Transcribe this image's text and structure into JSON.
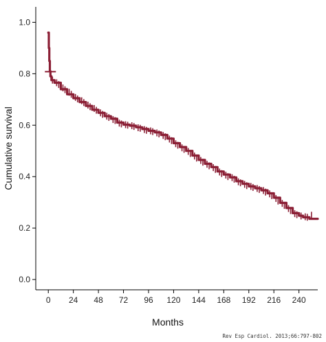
{
  "chart_data": {
    "type": "line",
    "xlabel": "Months",
    "ylabel": "Cumulative survival",
    "xlim": [
      -12,
      258
    ],
    "ylim": [
      -0.04,
      1.06
    ],
    "x_ticks": [
      0,
      24,
      48,
      72,
      96,
      120,
      144,
      168,
      192,
      216,
      240
    ],
    "y_ticks": [
      {
        "value": 0.0,
        "label": "0.0"
      },
      {
        "value": 0.2,
        "label": "0.2"
      },
      {
        "value": 0.4,
        "label": "0.4"
      },
      {
        "value": 0.6,
        "label": "0.6"
      },
      {
        "value": 0.8,
        "label": "0.8"
      },
      {
        "value": 1.0,
        "label": "1.0"
      }
    ],
    "grid": false,
    "legend": "none",
    "series": [
      {
        "color": "#8b1f35",
        "step": true,
        "points": [
          [
            0,
            0.96
          ],
          [
            0.5,
            0.9
          ],
          [
            1,
            0.85
          ],
          [
            1.5,
            0.81
          ],
          [
            2,
            0.79
          ],
          [
            3,
            0.775
          ],
          [
            6,
            0.765
          ],
          [
            12,
            0.74
          ],
          [
            18,
            0.72
          ],
          [
            24,
            0.705
          ],
          [
            30,
            0.69
          ],
          [
            36,
            0.675
          ],
          [
            42,
            0.66
          ],
          [
            48,
            0.648
          ],
          [
            54,
            0.635
          ],
          [
            60,
            0.625
          ],
          [
            66,
            0.61
          ],
          [
            72,
            0.602
          ],
          [
            78,
            0.598
          ],
          [
            84,
            0.592
          ],
          [
            90,
            0.585
          ],
          [
            96,
            0.578
          ],
          [
            102,
            0.572
          ],
          [
            108,
            0.562
          ],
          [
            114,
            0.548
          ],
          [
            120,
            0.53
          ],
          [
            126,
            0.515
          ],
          [
            132,
            0.5
          ],
          [
            138,
            0.482
          ],
          [
            144,
            0.465
          ],
          [
            150,
            0.45
          ],
          [
            156,
            0.437
          ],
          [
            162,
            0.42
          ],
          [
            168,
            0.408
          ],
          [
            174,
            0.397
          ],
          [
            180,
            0.382
          ],
          [
            186,
            0.372
          ],
          [
            192,
            0.362
          ],
          [
            198,
            0.355
          ],
          [
            204,
            0.347
          ],
          [
            210,
            0.335
          ],
          [
            216,
            0.318
          ],
          [
            222,
            0.298
          ],
          [
            228,
            0.278
          ],
          [
            234,
            0.258
          ],
          [
            240,
            0.248
          ],
          [
            244,
            0.242
          ],
          [
            250,
            0.236
          ],
          [
            258,
            0.236
          ]
        ],
        "censor_ticks": [
          [
            2,
            0.808
          ],
          [
            4,
            0.775
          ],
          [
            8,
            0.765
          ],
          [
            10,
            0.758
          ],
          [
            14,
            0.745
          ],
          [
            16,
            0.738
          ],
          [
            20,
            0.728
          ],
          [
            22,
            0.72
          ],
          [
            26,
            0.708
          ],
          [
            28,
            0.702
          ],
          [
            32,
            0.695
          ],
          [
            34,
            0.688
          ],
          [
            38,
            0.678
          ],
          [
            40,
            0.672
          ],
          [
            44,
            0.665
          ],
          [
            46,
            0.658
          ],
          [
            50,
            0.648
          ],
          [
            52,
            0.642
          ],
          [
            56,
            0.635
          ],
          [
            58,
            0.63
          ],
          [
            62,
            0.622
          ],
          [
            64,
            0.618
          ],
          [
            68,
            0.608
          ],
          [
            70,
            0.605
          ],
          [
            74,
            0.602
          ],
          [
            76,
            0.6
          ],
          [
            80,
            0.598
          ],
          [
            82,
            0.595
          ],
          [
            86,
            0.59
          ],
          [
            88,
            0.588
          ],
          [
            92,
            0.583
          ],
          [
            94,
            0.58
          ],
          [
            98,
            0.578
          ],
          [
            100,
            0.575
          ],
          [
            104,
            0.57
          ],
          [
            106,
            0.566
          ],
          [
            110,
            0.56
          ],
          [
            112,
            0.555
          ],
          [
            116,
            0.546
          ],
          [
            118,
            0.54
          ],
          [
            122,
            0.528
          ],
          [
            124,
            0.522
          ],
          [
            128,
            0.512
          ],
          [
            130,
            0.506
          ],
          [
            134,
            0.498
          ],
          [
            136,
            0.49
          ],
          [
            140,
            0.48
          ],
          [
            142,
            0.472
          ],
          [
            146,
            0.463
          ],
          [
            148,
            0.456
          ],
          [
            152,
            0.448
          ],
          [
            154,
            0.442
          ],
          [
            158,
            0.435
          ],
          [
            160,
            0.428
          ],
          [
            164,
            0.418
          ],
          [
            166,
            0.412
          ],
          [
            170,
            0.406
          ],
          [
            172,
            0.4
          ],
          [
            176,
            0.396
          ],
          [
            178,
            0.39
          ],
          [
            182,
            0.38
          ],
          [
            184,
            0.376
          ],
          [
            188,
            0.37
          ],
          [
            190,
            0.365
          ],
          [
            194,
            0.362
          ],
          [
            196,
            0.358
          ],
          [
            200,
            0.354
          ],
          [
            202,
            0.35
          ],
          [
            206,
            0.346
          ],
          [
            208,
            0.34
          ],
          [
            212,
            0.333
          ],
          [
            214,
            0.326
          ],
          [
            218,
            0.315
          ],
          [
            220,
            0.305
          ],
          [
            224,
            0.296
          ],
          [
            226,
            0.288
          ],
          [
            230,
            0.276
          ],
          [
            232,
            0.268
          ],
          [
            236,
            0.256
          ],
          [
            238,
            0.252
          ],
          [
            242,
            0.247
          ],
          [
            246,
            0.244
          ],
          [
            248,
            0.242
          ],
          [
            252,
            0.25
          ]
        ]
      }
    ]
  },
  "source": "Rev Esp Cardiol. 2013;66:797-802"
}
